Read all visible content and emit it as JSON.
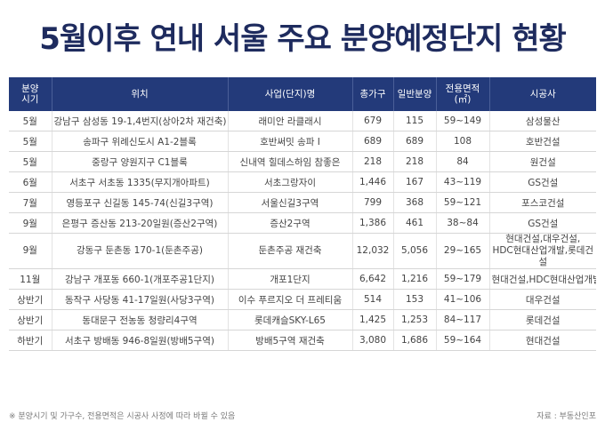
{
  "title": "5월이후 연내 서울 주요 분양예정단지 현황",
  "headers": [
    "분양\n시기",
    "위치",
    "사업(단지)명",
    "총가구",
    "일반분양",
    "전용면적\n(㎡)",
    "시공사"
  ],
  "rows": [
    [
      "5월",
      "강남구 삼성동 19-1,4번지(상아2차 재건축)",
      "래미안 라클래시",
      "679",
      "115",
      "59~149",
      "삼성물산"
    ],
    [
      "5월",
      "송파구 위례신도시 A1-2블록",
      "호반써밋 송파 Ⅰ",
      "689",
      "689",
      "108",
      "호반건설"
    ],
    [
      "5월",
      "중랑구 양원지구 C1블록",
      "신내역 힐데스하임 참좋은",
      "218",
      "218",
      "84",
      "원건설"
    ],
    [
      "6월",
      "서초구 서초동 1335(무지개아파트)",
      "서초그랑자이",
      "1,446",
      "167",
      "43~119",
      "GS건설"
    ],
    [
      "7월",
      "영등포구 신길동 145-74(신길3구역)",
      "서울신길3구역",
      "799",
      "368",
      "59~121",
      "포스코건설"
    ],
    [
      "9월",
      "은평구 증산동 213-20일원(증산2구역)",
      "증산2구역",
      "1,386",
      "461",
      "38~84",
      "GS건설"
    ],
    [
      "9월",
      "강동구 둔촌동 170-1(둔촌주공)",
      "둔촌주공 재건축",
      "12,032",
      "5,056",
      "29~165",
      "현대건설,대우건설,\nHDC현대산업개발,롯데건설"
    ],
    [
      "11월",
      "강남구 개포동 660-1(개포주공1단지)",
      "개포1단지",
      "6,642",
      "1,216",
      "59~179",
      "현대건설,HDC현대산업개발"
    ],
    [
      "상반기",
      "동작구 사당동 41-17일원(사당3구역)",
      "이수 푸르지오 더 프레티움",
      "514",
      "153",
      "41~106",
      "대우건설"
    ],
    [
      "상반기",
      "동대문구 전농동 청량리4구역",
      "롯데캐슬SKY-L65",
      "1,425",
      "1,253",
      "84~117",
      "롯데건설"
    ],
    [
      "하반기",
      "서초구 방배동 946-8일원(방배5구역)",
      "방배5구역 재건축",
      "3,080",
      "1,686",
      "59~164",
      "현대건설"
    ]
  ],
  "footnote": "※ 분양시기 및 가구수, 전용면적은 시공사 사정에 따라 바뀔 수 있음",
  "source": "자료 : 부동산인포"
}
